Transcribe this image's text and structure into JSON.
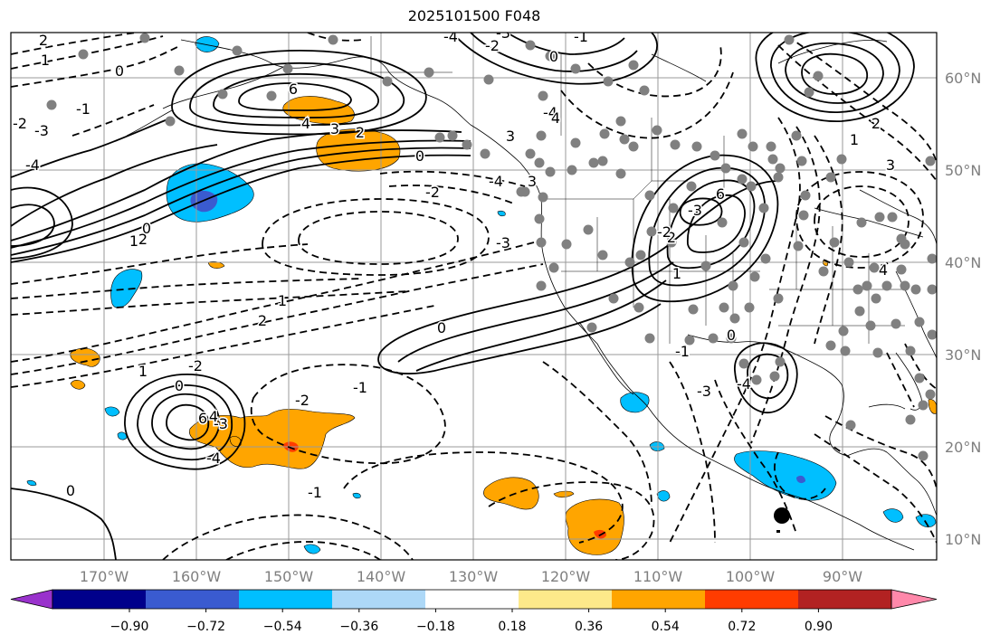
{
  "title": "2025101500 F048",
  "lat_labels": [
    "60°N",
    "50°N",
    "40°N",
    "30°N",
    "20°N",
    "10°N"
  ],
  "lon_labels": [
    "170°W",
    "160°W",
    "150°W",
    "140°W",
    "130°W",
    "120°W",
    "110°W",
    "100°W",
    "90°W"
  ],
  "colorbar": {
    "tick_labels": [
      "−0.90",
      "−0.72",
      "−0.54",
      "−0.36",
      "−0.18",
      "0.18",
      "0.36",
      "0.54",
      "0.72",
      "0.90"
    ],
    "colors": [
      "#9932cc",
      "#00008b",
      "#3a5bd0",
      "#00bfff",
      "#add8f7",
      "#ffffff",
      "#fde98a",
      "#ffa500",
      "#ff3c00",
      "#b22222",
      "#ff88aa"
    ]
  },
  "contour_labels": [
    "2",
    "1",
    "0",
    "-1",
    "-2",
    "-3",
    "-4",
    "6",
    "4",
    "3",
    "2",
    "0",
    "-2",
    "-3",
    "-4",
    "6",
    "2",
    "1",
    "-2",
    "-3",
    "-4",
    "-4",
    "-3",
    "-2",
    "-1",
    "0",
    "3",
    "3",
    "4",
    "6",
    "4",
    "-3",
    "-4",
    "-2",
    "0",
    "1",
    "0",
    "2",
    "1",
    "1",
    "2",
    "-2",
    "-1",
    "0",
    "-1",
    "0",
    "-3",
    "-4",
    "3",
    "2",
    "1",
    "4",
    "-1",
    "0"
  ],
  "colors": {
    "grid": "#9a9a9a",
    "station_dot": "#808080",
    "contour": "#000000",
    "axis_label": "#7f7f7f"
  }
}
